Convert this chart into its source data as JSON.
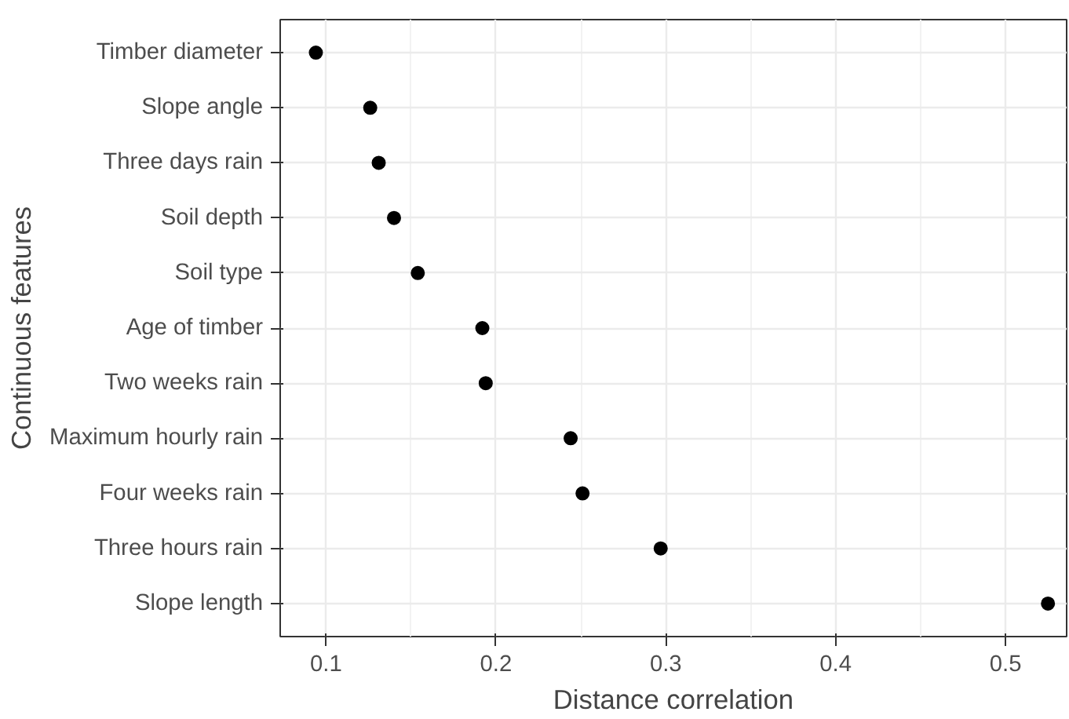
{
  "chart_data": {
    "type": "scatter",
    "orientation": "horizontal",
    "xlabel": "Distance correlation",
    "ylabel": "Continuous features",
    "categories": [
      "Timber diameter",
      "Slope angle",
      "Three days rain",
      "Soil depth",
      "Soil type",
      "Age of timber",
      "Two weeks rain",
      "Maximum hourly rain",
      "Four weeks rain",
      "Three hours rain",
      "Slope length"
    ],
    "values": [
      0.094,
      0.126,
      0.131,
      0.14,
      0.154,
      0.192,
      0.194,
      0.244,
      0.251,
      0.297,
      0.525
    ],
    "color": "#000000",
    "marker": "circle",
    "xlim": [
      0.073,
      0.536
    ],
    "xticks": [
      0.1,
      0.2,
      0.3,
      0.4,
      0.5
    ],
    "grid": true
  }
}
